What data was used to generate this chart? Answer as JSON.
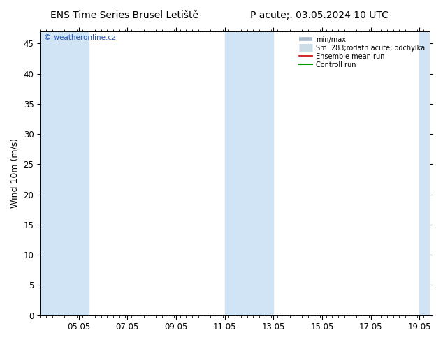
{
  "title_left": "ENS Time Series Brusel Letiště",
  "title_right": "P acute;. 03.05.2024 10 UTC",
  "ylabel": "Wind 10m (m/s)",
  "ylim": [
    0,
    47
  ],
  "yticks": [
    0,
    5,
    10,
    15,
    20,
    25,
    30,
    35,
    40,
    45
  ],
  "bg_color": "#ffffff",
  "plot_bg_color": "#ffffff",
  "stripe_color": "#d0e4f5",
  "watermark": "© weatheronline.cz",
  "watermark_color": "#2255bb",
  "x_start": "2024-05-03 10:00",
  "x_end": "2024-05-19 10:00",
  "blue_stripes": [
    [
      "2024-05-03 10:00",
      "2024-05-05 10:00"
    ],
    [
      "2024-05-11 00:00",
      "2024-05-13 00:00"
    ],
    [
      "2024-05-19 00:00",
      "2024-05-19 10:00"
    ]
  ],
  "x_tick_labels": [
    "05.05",
    "07.05",
    "09.05",
    "11.05",
    "13.05",
    "15.05",
    "17.05",
    "19.05"
  ],
  "x_tick_dates": [
    "2024-05-05 00:00",
    "2024-05-07 00:00",
    "2024-05-09 00:00",
    "2024-05-11 00:00",
    "2024-05-13 00:00",
    "2024-05-15 00:00",
    "2024-05-17 00:00",
    "2024-05-19 00:00"
  ],
  "legend_labels": [
    "min/max",
    "Sm  283;rodatn acute; odchylka",
    "Ensemble mean run",
    "Controll run"
  ],
  "legend_colors": [
    "#aabbcc",
    "#ccdde8",
    "#cc0000",
    "#009900"
  ],
  "legend_lws": [
    2,
    4,
    1.2,
    1.5
  ],
  "title_fontsize": 10,
  "axis_fontsize": 9,
  "tick_fontsize": 8.5
}
